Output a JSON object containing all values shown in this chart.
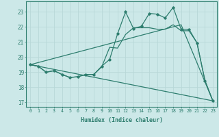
{
  "xlabel": "Humidex (Indice chaleur)",
  "bg_color": "#cce8e8",
  "line_color": "#2d7d6e",
  "grid_color": "#aacccc",
  "xlim": [
    -0.5,
    23.5
  ],
  "ylim": [
    16.7,
    23.7
  ],
  "yticks": [
    17,
    18,
    19,
    20,
    21,
    22,
    23
  ],
  "xticks": [
    0,
    1,
    2,
    3,
    4,
    5,
    6,
    7,
    8,
    9,
    10,
    11,
    12,
    13,
    14,
    15,
    16,
    17,
    18,
    19,
    20,
    21,
    22,
    23
  ],
  "line1_x": [
    0,
    1,
    2,
    3,
    4,
    5,
    6,
    7,
    8,
    9,
    10,
    11,
    12,
    13,
    14,
    15,
    16,
    17,
    18,
    19,
    20,
    21,
    22,
    23
  ],
  "line1_y": [
    19.5,
    19.4,
    19.0,
    19.1,
    18.85,
    18.65,
    18.7,
    18.85,
    18.85,
    19.4,
    19.85,
    21.55,
    23.0,
    21.9,
    22.05,
    22.9,
    22.85,
    22.6,
    23.3,
    21.85,
    21.85,
    20.95,
    18.45,
    17.1
  ],
  "line2_x": [
    0,
    1,
    2,
    3,
    4,
    5,
    6,
    7,
    8,
    9,
    10,
    11,
    12,
    13,
    14,
    15,
    16,
    17,
    18,
    19,
    20,
    21,
    22,
    23
  ],
  "line2_y": [
    19.5,
    19.4,
    19.0,
    19.1,
    18.85,
    18.65,
    18.7,
    18.85,
    18.85,
    19.35,
    20.65,
    20.6,
    21.5,
    21.95,
    21.95,
    21.95,
    21.85,
    21.85,
    22.15,
    21.75,
    21.75,
    20.95,
    18.45,
    17.1
  ],
  "line3_x": [
    0,
    23
  ],
  "line3_y": [
    19.5,
    17.1
  ],
  "line4_x": [
    0,
    19,
    23
  ],
  "line4_y": [
    19.5,
    22.15,
    17.1
  ]
}
